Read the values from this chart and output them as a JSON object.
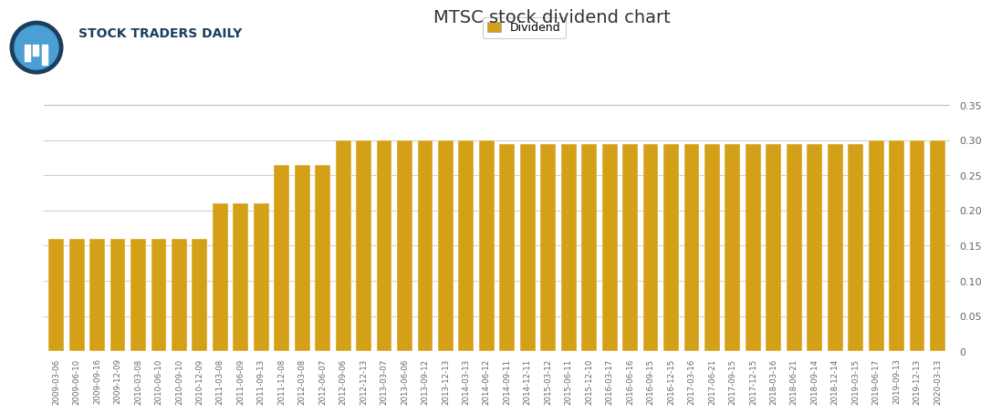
{
  "title": "MTSC stock dividend chart",
  "bar_color": "#D4A017",
  "background_color": "#ffffff",
  "legend_label": "Dividend",
  "ylim": [
    0,
    0.35
  ],
  "yticks": [
    0,
    0.05,
    0.1,
    0.15,
    0.2,
    0.25,
    0.3,
    0.35
  ],
  "ytick_labels": [
    "0",
    "0.05",
    "0.10",
    "0.15",
    "0.20",
    "0.25",
    "0.30",
    "0.35"
  ],
  "categories": [
    "2009-03-06",
    "2009-06-10",
    "2009-09-16",
    "2009-12-09",
    "2010-03-08",
    "2010-06-10",
    "2010-09-10",
    "2010-12-09",
    "2011-03-08",
    "2011-06-09",
    "2011-09-13",
    "2011-12-08",
    "2012-03-08",
    "2012-06-07",
    "2012-09-06",
    "2012-12-13",
    "2013-03-07",
    "2013-06-06",
    "2013-09-12",
    "2013-12-13",
    "2014-03-13",
    "2014-06-12",
    "2014-09-11",
    "2014-12-11",
    "2015-03-12",
    "2015-06-11",
    "2015-12-10",
    "2016-03-17",
    "2016-06-16",
    "2016-09-15",
    "2016-12-15",
    "2017-03-16",
    "2017-06-21",
    "2017-09-15",
    "2017-12-15",
    "2018-03-16",
    "2018-06-21",
    "2018-09-14",
    "2018-12-14",
    "2019-03-15",
    "2019-06-17",
    "2019-09-13",
    "2019-12-13",
    "2020-03-13"
  ],
  "values": [
    0.16,
    0.16,
    0.16,
    0.16,
    0.16,
    0.16,
    0.16,
    0.16,
    0.21,
    0.21,
    0.21,
    0.265,
    0.265,
    0.265,
    0.3,
    0.3,
    0.3,
    0.3,
    0.3,
    0.3,
    0.3,
    0.3,
    0.295,
    0.295,
    0.295,
    0.295,
    0.295,
    0.295,
    0.295,
    0.295,
    0.295,
    0.295,
    0.295,
    0.295,
    0.295,
    0.295,
    0.295,
    0.295,
    0.295,
    0.295,
    0.3,
    0.3,
    0.3,
    0.3
  ],
  "header_text": "STOCK TRADERS DAILY",
  "header_color": "#1c3f5e",
  "logo_outer_color": "#1c3f5e",
  "logo_inner_color": "#4a9fd4",
  "title_fontsize": 14,
  "tick_label_color": "#666666",
  "grid_color": "#cccccc",
  "legend_edge_color": "#cccccc"
}
